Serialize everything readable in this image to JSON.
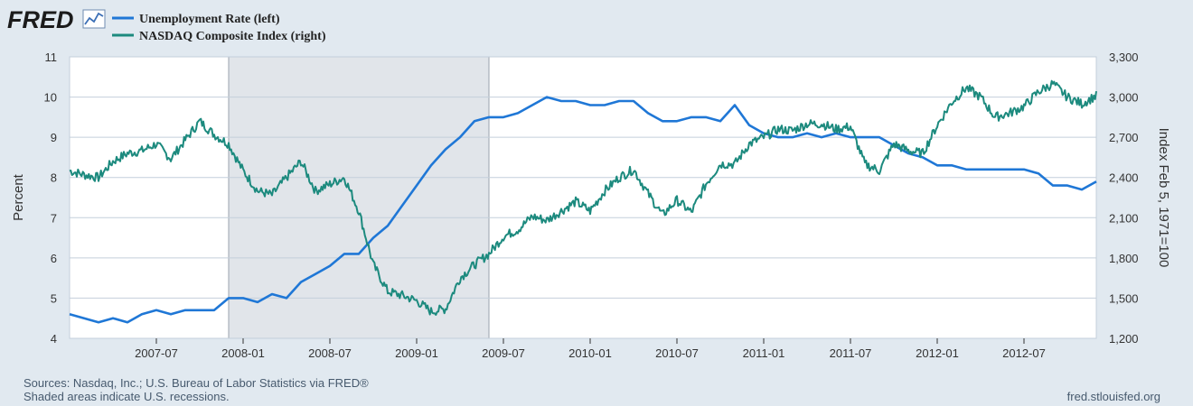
{
  "header": {
    "logo_text": "FRED",
    "logo_icon": "chart-line-icon",
    "legend": [
      {
        "label": "Unemployment Rate (left)",
        "color": "#1f77d6"
      },
      {
        "label": "NASDAQ Composite Index (right)",
        "color": "#1c8a7e"
      }
    ]
  },
  "footer": {
    "sources": "Sources: Nasdaq, Inc.; U.S. Bureau of Labor Statistics via FRED®",
    "recession_note": "Shaded areas indicate U.S. recessions.",
    "site": "fred.stlouisfed.org"
  },
  "chart_data": {
    "type": "line",
    "ylabel_left": "Percent",
    "ylabel_right": "Index Feb 5, 1971=100",
    "grid": true,
    "legend_placement": "top-left",
    "x_range": [
      "2007-01",
      "2012-12"
    ],
    "ylim_left": [
      4,
      11
    ],
    "ylim_right": [
      1200,
      3300
    ],
    "left_ticks": [
      "4",
      "5",
      "6",
      "7",
      "8",
      "9",
      "10",
      "11"
    ],
    "right_ticks": [
      "1,200",
      "1,500",
      "1,800",
      "2,100",
      "2,400",
      "2,700",
      "3,000",
      "3,300"
    ],
    "x_ticks": [
      "2007-07",
      "2008-01",
      "2008-07",
      "2009-01",
      "2009-07",
      "2010-01",
      "2010-07",
      "2011-01",
      "2011-07",
      "2012-01",
      "2012-07"
    ],
    "recessions": [
      {
        "start": "2007-12",
        "end": "2009-06"
      }
    ],
    "colors": {
      "recession_shade": "#e1e5ea",
      "grid": "#c4cfdb",
      "background": "#ffffff"
    },
    "series": [
      {
        "name": "Unemployment Rate (left)",
        "axis": "left",
        "x": [
          "2007-01",
          "2007-02",
          "2007-03",
          "2007-04",
          "2007-05",
          "2007-06",
          "2007-07",
          "2007-08",
          "2007-09",
          "2007-10",
          "2007-11",
          "2007-12",
          "2008-01",
          "2008-02",
          "2008-03",
          "2008-04",
          "2008-05",
          "2008-06",
          "2008-07",
          "2008-08",
          "2008-09",
          "2008-10",
          "2008-11",
          "2008-12",
          "2009-01",
          "2009-02",
          "2009-03",
          "2009-04",
          "2009-05",
          "2009-06",
          "2009-07",
          "2009-08",
          "2009-09",
          "2009-10",
          "2009-11",
          "2009-12",
          "2010-01",
          "2010-02",
          "2010-03",
          "2010-04",
          "2010-05",
          "2010-06",
          "2010-07",
          "2010-08",
          "2010-09",
          "2010-10",
          "2010-11",
          "2010-12",
          "2011-01",
          "2011-02",
          "2011-03",
          "2011-04",
          "2011-05",
          "2011-06",
          "2011-07",
          "2011-08",
          "2011-09",
          "2011-10",
          "2011-11",
          "2011-12",
          "2012-01",
          "2012-02",
          "2012-03",
          "2012-04",
          "2012-05",
          "2012-06",
          "2012-07",
          "2012-08",
          "2012-09",
          "2012-10",
          "2012-11",
          "2012-12"
        ],
        "values": [
          4.6,
          4.5,
          4.4,
          4.5,
          4.4,
          4.6,
          4.7,
          4.6,
          4.7,
          4.7,
          4.7,
          5.0,
          5.0,
          4.9,
          5.1,
          5.0,
          5.4,
          5.6,
          5.8,
          6.1,
          6.1,
          6.5,
          6.8,
          7.3,
          7.8,
          8.3,
          8.7,
          9.0,
          9.4,
          9.5,
          9.5,
          9.6,
          9.8,
          10.0,
          9.9,
          9.9,
          9.8,
          9.8,
          9.9,
          9.9,
          9.6,
          9.4,
          9.4,
          9.5,
          9.5,
          9.4,
          9.8,
          9.3,
          9.1,
          9.0,
          9.0,
          9.1,
          9.0,
          9.1,
          9.0,
          9.0,
          9.0,
          8.8,
          8.6,
          8.5,
          8.3,
          8.3,
          8.2,
          8.2,
          8.2,
          8.2,
          8.2,
          8.1,
          7.8,
          7.8,
          7.7,
          7.9
        ]
      },
      {
        "name": "NASDAQ Composite Index (right)",
        "axis": "right",
        "x": [
          "2007-01",
          "2007-02",
          "2007-03",
          "2007-04",
          "2007-05",
          "2007-06",
          "2007-07",
          "2007-08",
          "2007-09",
          "2007-10",
          "2007-11",
          "2007-12",
          "2008-01",
          "2008-02",
          "2008-03",
          "2008-04",
          "2008-05",
          "2008-06",
          "2008-07",
          "2008-08",
          "2008-09",
          "2008-10",
          "2008-11",
          "2008-12",
          "2009-01",
          "2009-02",
          "2009-03",
          "2009-04",
          "2009-05",
          "2009-06",
          "2009-07",
          "2009-08",
          "2009-09",
          "2009-10",
          "2009-11",
          "2009-12",
          "2010-01",
          "2010-02",
          "2010-03",
          "2010-04",
          "2010-05",
          "2010-06",
          "2010-07",
          "2010-08",
          "2010-09",
          "2010-10",
          "2010-11",
          "2010-12",
          "2011-01",
          "2011-02",
          "2011-03",
          "2011-04",
          "2011-05",
          "2011-06",
          "2011-07",
          "2011-08",
          "2011-09",
          "2011-10",
          "2011-11",
          "2011-12",
          "2012-01",
          "2012-02",
          "2012-03",
          "2012-04",
          "2012-05",
          "2012-06",
          "2012-07",
          "2012-08",
          "2012-09",
          "2012-10",
          "2012-11",
          "2012-12"
        ],
        "values": [
          2450,
          2420,
          2400,
          2520,
          2580,
          2600,
          2650,
          2540,
          2680,
          2820,
          2720,
          2650,
          2450,
          2300,
          2270,
          2400,
          2520,
          2300,
          2350,
          2400,
          2150,
          1750,
          1550,
          1520,
          1480,
          1400,
          1420,
          1650,
          1750,
          1830,
          1960,
          2010,
          2110,
          2080,
          2150,
          2220,
          2150,
          2300,
          2400,
          2460,
          2280,
          2120,
          2230,
          2140,
          2350,
          2500,
          2500,
          2650,
          2700,
          2760,
          2750,
          2800,
          2800,
          2760,
          2780,
          2500,
          2450,
          2650,
          2600,
          2580,
          2790,
          2960,
          3070,
          3000,
          2850,
          2880,
          2930,
          3040,
          3100,
          3000,
          2950,
          3010
        ]
      }
    ]
  }
}
